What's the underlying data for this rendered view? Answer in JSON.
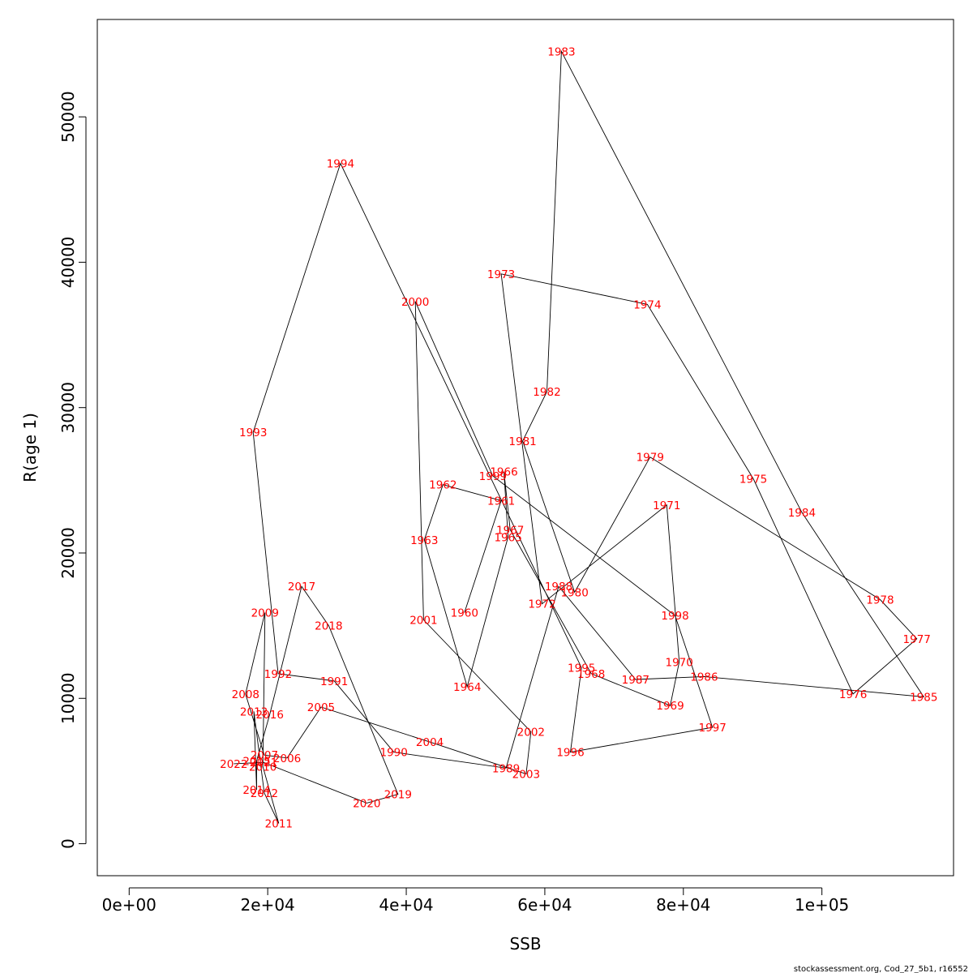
{
  "chart_data": {
    "type": "line",
    "xlabel": "SSB",
    "ylabel": "R(age 1)",
    "xlim": [
      -4600,
      119000
    ],
    "ylim": [
      -2200,
      56700
    ],
    "x_ticks": [
      0,
      20000,
      40000,
      60000,
      80000,
      100000
    ],
    "x_tick_labels": [
      "0e+00",
      "2e+04",
      "4e+04",
      "6e+04",
      "8e+04",
      "1e+05"
    ],
    "y_ticks": [
      0,
      10000,
      20000,
      30000,
      40000,
      50000
    ],
    "y_tick_labels": [
      "0",
      "10000",
      "20000",
      "30000",
      "40000",
      "50000"
    ],
    "grid": false,
    "line_color": "#000000",
    "label_color": "#ff0000",
    "points": [
      {
        "year": "1960",
        "x": 48400,
        "y": 15900
      },
      {
        "year": "1961",
        "x": 53700,
        "y": 23600
      },
      {
        "year": "1962",
        "x": 45300,
        "y": 24700
      },
      {
        "year": "1963",
        "x": 42600,
        "y": 20900
      },
      {
        "year": "1964",
        "x": 48800,
        "y": 10800
      },
      {
        "year": "1965",
        "x": 54700,
        "y": 21100
      },
      {
        "year": "1966",
        "x": 54100,
        "y": 25600
      },
      {
        "year": "1967",
        "x": 55000,
        "y": 21600
      },
      {
        "year": "1968",
        "x": 66700,
        "y": 11700
      },
      {
        "year": "1969",
        "x": 78100,
        "y": 9500
      },
      {
        "year": "1970",
        "x": 79400,
        "y": 12500
      },
      {
        "year": "1971",
        "x": 77600,
        "y": 23300
      },
      {
        "year": "1972",
        "x": 59600,
        "y": 16500
      },
      {
        "year": "1973",
        "x": 53700,
        "y": 39200
      },
      {
        "year": "1974",
        "x": 74800,
        "y": 37100
      },
      {
        "year": "1975",
        "x": 90100,
        "y": 25100
      },
      {
        "year": "1976",
        "x": 104500,
        "y": 10300
      },
      {
        "year": "1977",
        "x": 113700,
        "y": 14100
      },
      {
        "year": "1978",
        "x": 108400,
        "y": 16800
      },
      {
        "year": "1979",
        "x": 75200,
        "y": 26600
      },
      {
        "year": "1980",
        "x": 64300,
        "y": 17300
      },
      {
        "year": "1981",
        "x": 56800,
        "y": 27700
      },
      {
        "year": "1982",
        "x": 60300,
        "y": 31100
      },
      {
        "year": "1983",
        "x": 62400,
        "y": 54500
      },
      {
        "year": "1984",
        "x": 97100,
        "y": 22800
      },
      {
        "year": "1985",
        "x": 114700,
        "y": 10100
      },
      {
        "year": "1986",
        "x": 83000,
        "y": 11500
      },
      {
        "year": "1987",
        "x": 73100,
        "y": 11300
      },
      {
        "year": "1988",
        "x": 62000,
        "y": 17700
      },
      {
        "year": "1989",
        "x": 54400,
        "y": 5200
      },
      {
        "year": "1990",
        "x": 38200,
        "y": 6300
      },
      {
        "year": "1991",
        "x": 29600,
        "y": 11200
      },
      {
        "year": "1992",
        "x": 21500,
        "y": 11700
      },
      {
        "year": "1993",
        "x": 17900,
        "y": 28300
      },
      {
        "year": "1994",
        "x": 30500,
        "y": 46800
      },
      {
        "year": "1995",
        "x": 65300,
        "y": 12100
      },
      {
        "year": "1996",
        "x": 63700,
        "y": 6300
      },
      {
        "year": "1997",
        "x": 84200,
        "y": 8000
      },
      {
        "year": "1998",
        "x": 78800,
        "y": 15700
      },
      {
        "year": "1999",
        "x": 52500,
        "y": 25300
      },
      {
        "year": "2000",
        "x": 41300,
        "y": 37300
      },
      {
        "year": "2001",
        "x": 42500,
        "y": 15400
      },
      {
        "year": "2002",
        "x": 58000,
        "y": 7700
      },
      {
        "year": "2003",
        "x": 57300,
        "y": 4800
      },
      {
        "year": "2004",
        "x": 43400,
        "y": 7000
      },
      {
        "year": "2005",
        "x": 27700,
        "y": 9400
      },
      {
        "year": "2006",
        "x": 22800,
        "y": 5900
      },
      {
        "year": "2007",
        "x": 19500,
        "y": 6100
      },
      {
        "year": "2008",
        "x": 16800,
        "y": 10300
      },
      {
        "year": "2009",
        "x": 19600,
        "y": 15900
      },
      {
        "year": "2010",
        "x": 19300,
        "y": 5300
      },
      {
        "year": "2011",
        "x": 21600,
        "y": 1400
      },
      {
        "year": "2012",
        "x": 19500,
        "y": 3500
      },
      {
        "year": "2013",
        "x": 18000,
        "y": 9100
      },
      {
        "year": "2014",
        "x": 18400,
        "y": 3700
      },
      {
        "year": "2015",
        "x": 18400,
        "y": 5700
      },
      {
        "year": "2016",
        "x": 20300,
        "y": 8900
      },
      {
        "year": "2017",
        "x": 24900,
        "y": 17700
      },
      {
        "year": "2018",
        "x": 28800,
        "y": 15000
      },
      {
        "year": "2019",
        "x": 38800,
        "y": 3400
      },
      {
        "year": "2020",
        "x": 34300,
        "y": 2800
      },
      {
        "year": "2021",
        "x": 19400,
        "y": 5600
      },
      {
        "year": "2022",
        "x": 15100,
        "y": 5500
      }
    ]
  },
  "footer": {
    "text": "stockassessment.org, Cod_27_5b1, r16552"
  }
}
